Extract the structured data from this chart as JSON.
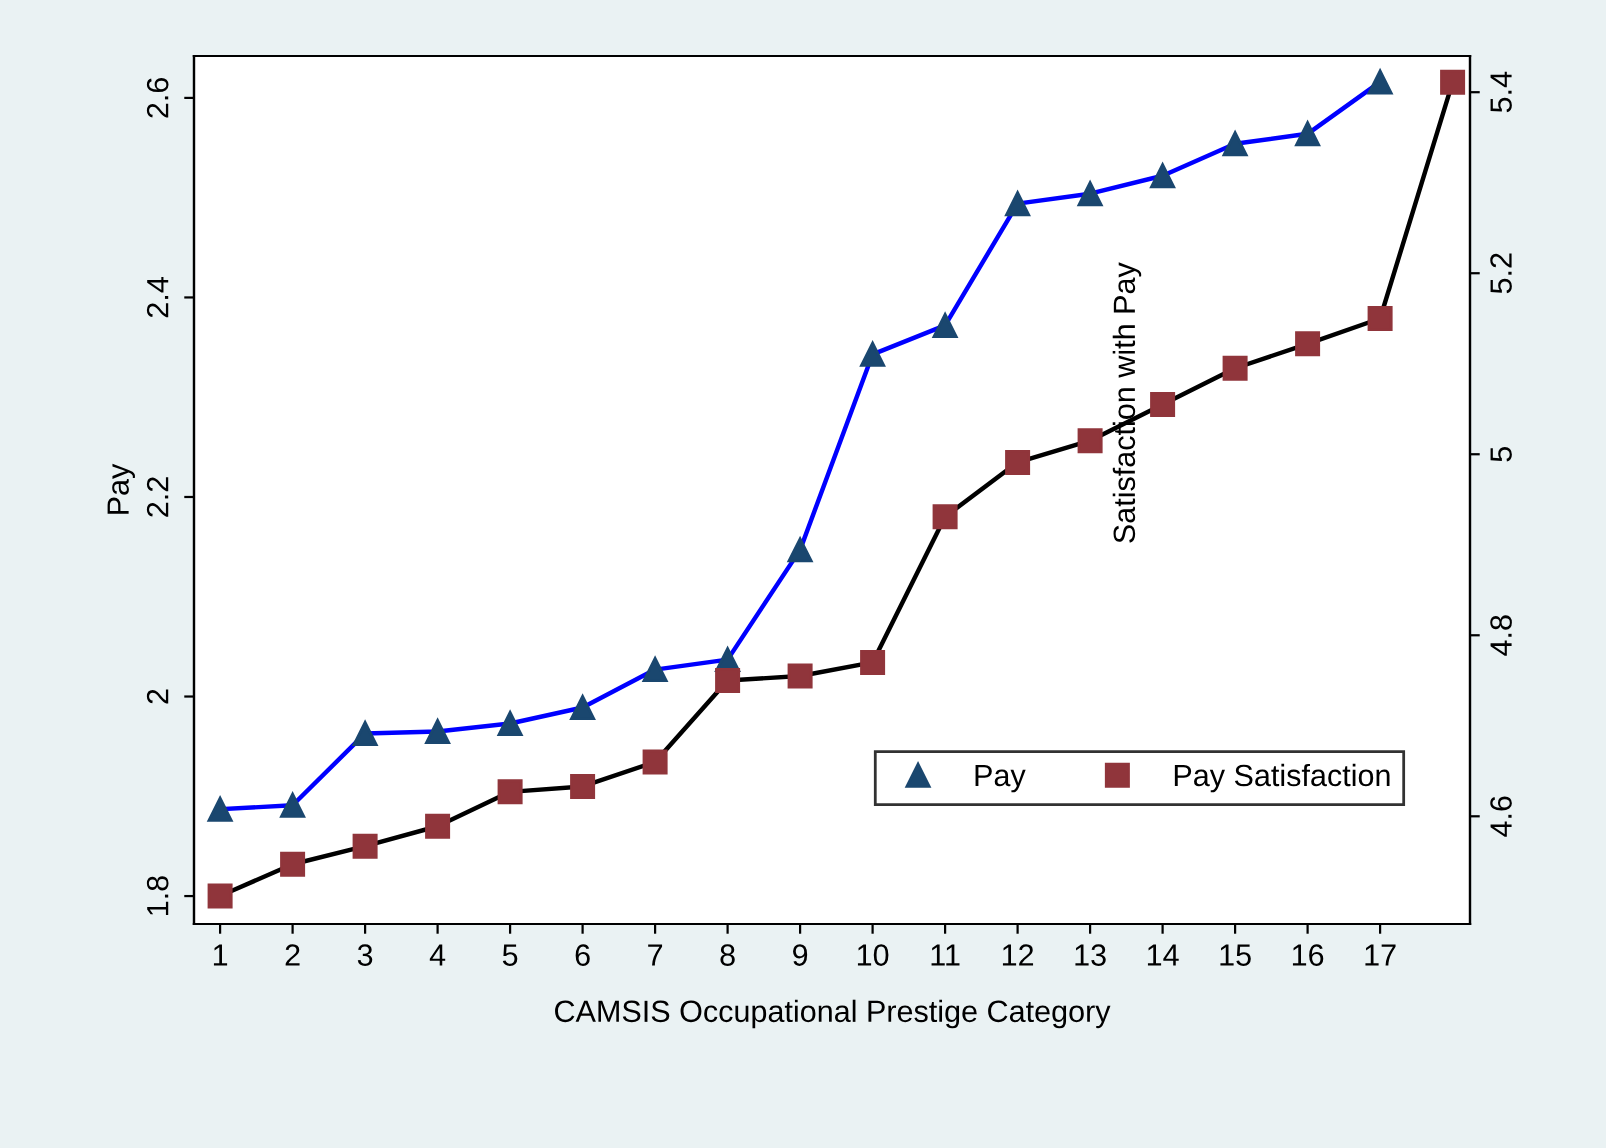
{
  "chart_data": {
    "type": "line",
    "xlabel": "CAMSIS Occupational Prestige Category",
    "ylabel": "Pay",
    "y2label": "Satisfaction with Pay",
    "xlim": [
      0.64,
      18.24
    ],
    "xticks": [
      1,
      2,
      3,
      4,
      5,
      6,
      7,
      8,
      9,
      10,
      11,
      12,
      13,
      14,
      15,
      16,
      17
    ],
    "ylim": [
      1.772,
      2.642
    ],
    "yticks": [
      1.8,
      2,
      2.2,
      2.4,
      2.6
    ],
    "y2lim": [
      4.481,
      5.44
    ],
    "y2ticks": [
      4.6,
      4.8,
      5,
      5.2,
      5.4
    ],
    "series": [
      {
        "name": "Pay",
        "color": "#1a476f",
        "marker": "triangle",
        "x": [
          1,
          2,
          3,
          4,
          5,
          6,
          7,
          8,
          9,
          10,
          11,
          12,
          13,
          14,
          15,
          16,
          17
        ],
        "values": [
          1.887,
          1.891,
          1.963,
          1.965,
          1.973,
          1.989,
          2.027,
          2.037,
          2.147,
          2.343,
          2.372,
          2.494,
          2.504,
          2.522,
          2.554,
          2.564,
          2.616
        ]
      },
      {
        "name": "Pay Satisfaction",
        "color": "#90353b",
        "marker": "square",
        "axis": "y2",
        "x": [
          1,
          2,
          3,
          4,
          5,
          6,
          7,
          8,
          9,
          10,
          11,
          12,
          13,
          14,
          15,
          16,
          17,
          18
        ],
        "values": [
          4.512,
          4.547,
          4.567,
          4.589,
          4.627,
          4.633,
          4.66,
          4.75,
          4.755,
          4.77,
          4.931,
          4.991,
          5.015,
          5.055,
          5.095,
          5.122,
          5.15,
          5.411
        ]
      }
    ],
    "legend": "bottom right",
    "grid": false
  }
}
